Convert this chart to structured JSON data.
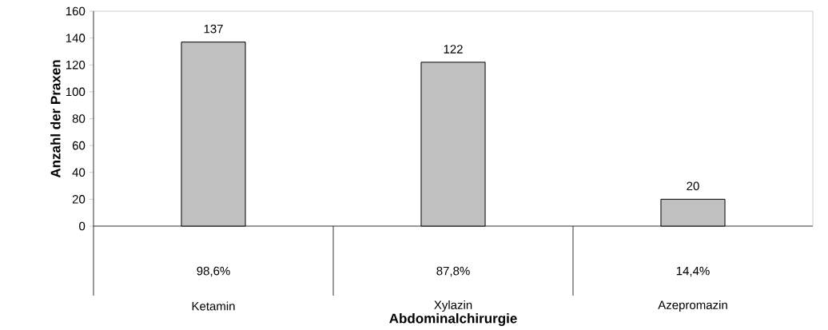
{
  "chart_data": {
    "type": "bar",
    "xlabel": "Abdominalchirurgie",
    "ylabel": "Anzahl der Praxen",
    "categories": [
      "Ketamin",
      "Xylazin",
      "Azepromazin"
    ],
    "values": [
      137,
      122,
      20
    ],
    "color": "#c0c0c0",
    "ylim": [
      0,
      160
    ],
    "yticks": [
      0,
      20,
      40,
      60,
      80,
      100,
      120,
      140,
      160
    ],
    "data_labels": true,
    "grid": false,
    "annotations": [
      "98,6%",
      "87,8%",
      "14,4%"
    ]
  }
}
